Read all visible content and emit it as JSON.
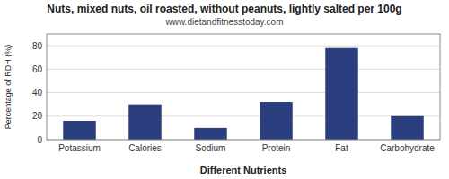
{
  "chart_data": {
    "type": "bar",
    "title": "Nuts, mixed nuts, oil roasted, without peanuts, lightly salted per 100g",
    "subtitle": "www.dietandfitnesstoday.com",
    "categories": [
      "Potassium",
      "Calories",
      "Sodium",
      "Protein",
      "Fat",
      "Carbohydrate"
    ],
    "values": [
      16,
      30,
      10,
      32,
      78,
      20
    ],
    "color": "#2b3f7e",
    "xlabel": "Different Nutrients",
    "ylabel": "Percentage of RDH (%)",
    "ylim": [
      0,
      90
    ],
    "yticks": [
      0,
      20,
      40,
      60,
      80
    ],
    "grid": true
  }
}
